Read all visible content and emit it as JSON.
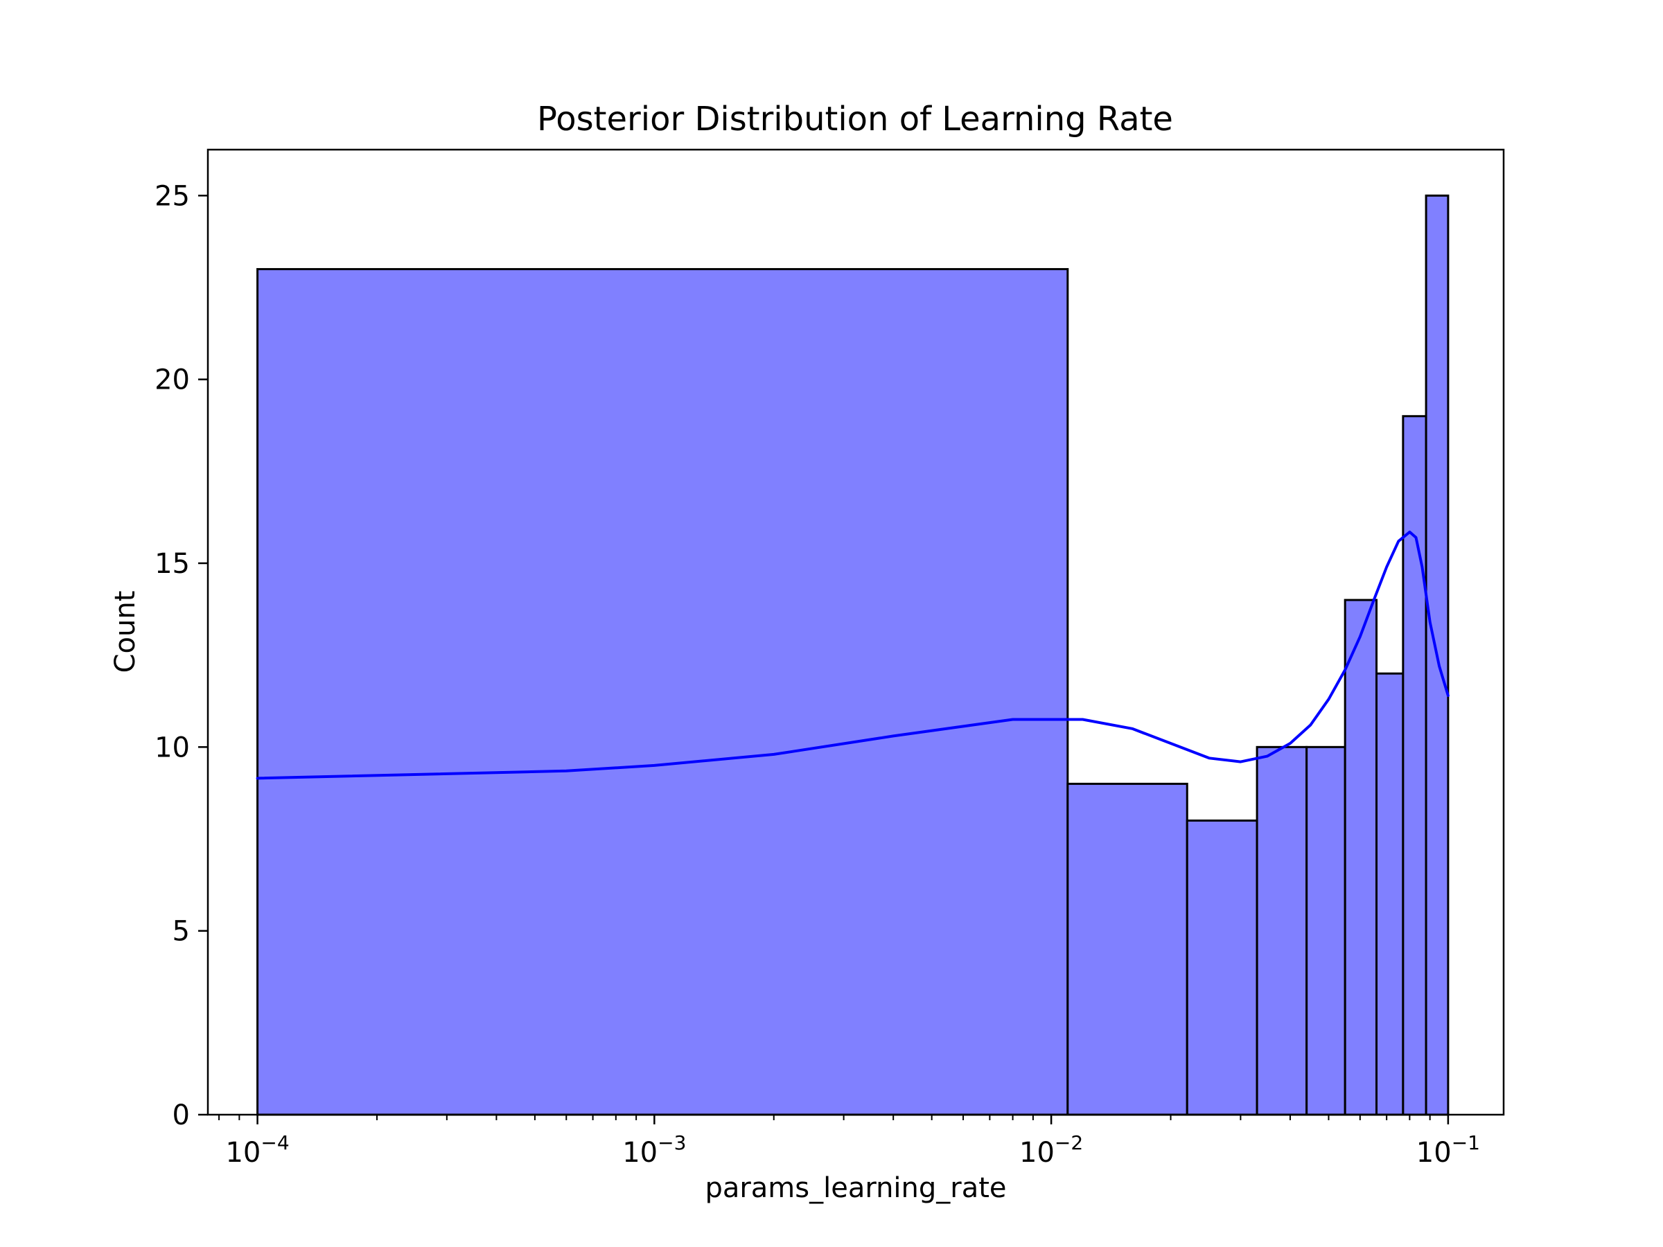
{
  "chart_data": {
    "type": "histogram",
    "title": "Posterior Distribution of Learning Rate",
    "xlabel": "params_learning_rate",
    "ylabel": "Count",
    "x_scale": "log",
    "xlim": [
      7.5e-05,
      0.138
    ],
    "ylim": [
      0,
      26.25
    ],
    "x_ticks": [
      {
        "value": 0.0001,
        "base": "10",
        "exp": "−4"
      },
      {
        "value": 0.001,
        "base": "10",
        "exp": "−3"
      },
      {
        "value": 0.01,
        "base": "10",
        "exp": "−2"
      },
      {
        "value": 0.1,
        "base": "10",
        "exp": "−1"
      }
    ],
    "y_ticks": [
      {
        "value": 0,
        "label": "0"
      },
      {
        "value": 5,
        "label": "5"
      },
      {
        "value": 10,
        "label": "10"
      },
      {
        "value": 15,
        "label": "15"
      },
      {
        "value": 20,
        "label": "20"
      },
      {
        "value": 25,
        "label": "25"
      }
    ],
    "bins": [
      {
        "x0": 0.0001,
        "x1": 0.011,
        "count": 23
      },
      {
        "x0": 0.011,
        "x1": 0.022,
        "count": 9
      },
      {
        "x0": 0.022,
        "x1": 0.033,
        "count": 8
      },
      {
        "x0": 0.033,
        "x1": 0.044,
        "count": 10
      },
      {
        "x0": 0.044,
        "x1": 0.055,
        "count": 10
      },
      {
        "x0": 0.055,
        "x1": 0.066,
        "count": 14
      },
      {
        "x0": 0.066,
        "x1": 0.077,
        "count": 12
      },
      {
        "x0": 0.077,
        "x1": 0.088,
        "count": 19
      },
      {
        "x0": 0.088,
        "x1": 0.1,
        "count": 25
      }
    ],
    "kde": {
      "x": [
        0.0001,
        0.0006,
        0.001,
        0.002,
        0.004,
        0.008,
        0.012,
        0.016,
        0.02,
        0.025,
        0.03,
        0.035,
        0.04,
        0.045,
        0.05,
        0.055,
        0.06,
        0.065,
        0.07,
        0.075,
        0.08,
        0.083,
        0.086,
        0.09,
        0.095,
        0.1
      ],
      "y": [
        9.15,
        9.35,
        9.5,
        9.8,
        10.3,
        10.75,
        10.75,
        10.5,
        10.1,
        9.7,
        9.6,
        9.75,
        10.1,
        10.6,
        11.3,
        12.1,
        13.0,
        14.0,
        14.9,
        15.6,
        15.85,
        15.7,
        14.9,
        13.4,
        12.2,
        11.4
      ]
    },
    "colors": {
      "bar_fill": "#8080ff",
      "bar_edge": "#000000",
      "kde_line": "#0000ff"
    },
    "grid": false,
    "legend": false
  }
}
